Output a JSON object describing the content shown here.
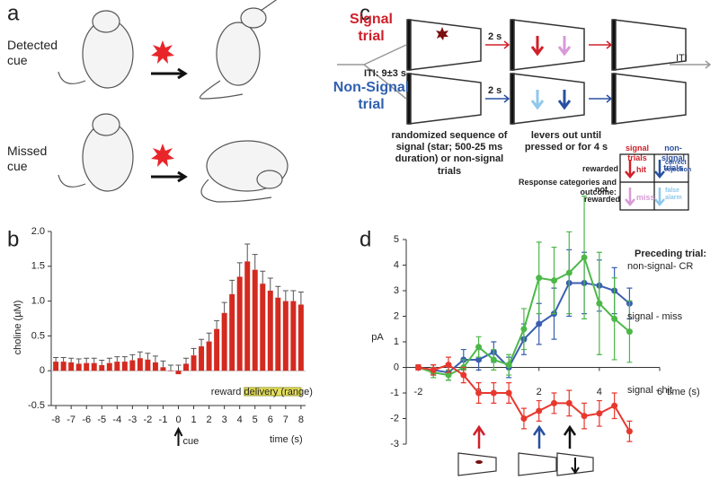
{
  "panels": {
    "a": {
      "label": "a",
      "detected": "Detected cue",
      "missed": "Missed cue"
    },
    "c": {
      "label": "c",
      "signal_trial": "Signal trial",
      "nonsignal_trial": "Non-Signal trial",
      "iti": "ITI: 9±3 s",
      "delay_signal": "2 s",
      "delay_nonsignal": "2 s",
      "iti_end": "ITI",
      "sequence_note": "randomized sequence of signal (star; 500-25 ms duration) or non-signal trials",
      "lever_note": "levers out until pressed or for 4 s",
      "table": {
        "caption": "Response categories and outcome:",
        "columns": [
          "signal trials",
          "non-signal trials"
        ],
        "rows": [
          "rewarded",
          "not rewarded"
        ],
        "cells": [
          [
            "hit",
            "correct rejection"
          ],
          [
            "miss",
            "false alarm"
          ]
        ]
      }
    }
  },
  "chart_data": [
    {
      "type": "bar",
      "label": "b",
      "y_label": "choline (µM)",
      "x_label": "time (s)",
      "color": "#d42a20",
      "x": [
        -8,
        -7.5,
        -7,
        -6.5,
        -6,
        -5.5,
        -5,
        -4.5,
        -4,
        -3.5,
        -3,
        -2.5,
        -2,
        -1.5,
        -1,
        -0.5,
        0,
        0.5,
        1,
        1.5,
        2,
        2.5,
        3,
        3.5,
        4,
        4.5,
        5,
        5.5,
        6,
        6.5,
        7,
        7.5,
        8
      ],
      "values": [
        0.13,
        0.13,
        0.12,
        0.1,
        0.11,
        0.11,
        0.08,
        0.11,
        0.13,
        0.13,
        0.15,
        0.18,
        0.16,
        0.12,
        0.05,
        0.0,
        -0.05,
        0.1,
        0.22,
        0.35,
        0.42,
        0.6,
        0.83,
        1.1,
        1.35,
        1.57,
        1.45,
        1.25,
        1.15,
        1.05,
        1.0,
        1.0,
        0.95
      ],
      "errors": [
        0.06,
        0.06,
        0.06,
        0.07,
        0.07,
        0.07,
        0.07,
        0.07,
        0.07,
        0.07,
        0.08,
        0.09,
        0.09,
        0.09,
        0.09,
        0.08,
        0.08,
        0.08,
        0.1,
        0.1,
        0.12,
        0.12,
        0.15,
        0.2,
        0.2,
        0.25,
        0.22,
        0.18,
        0.18,
        0.16,
        0.15,
        0.15,
        0.18
      ],
      "xlim": [
        -8.3,
        8.3
      ],
      "ylim": [
        -0.5,
        2.0
      ],
      "xticks": [
        -8,
        -7,
        -6,
        -5,
        -4,
        -3,
        -2,
        -1,
        0,
        1,
        2,
        3,
        4,
        5,
        6,
        7,
        8
      ],
      "yticks": [
        -0.5,
        0,
        0.5,
        {
          "value": 1,
          "label": "1.0"
        },
        1.5,
        {
          "value": 2,
          "label": "2.0"
        }
      ],
      "annotations": [
        {
          "text": "cue",
          "x": 0
        },
        {
          "text": "reward delivery (range)",
          "x": [
            4.3,
            8
          ]
        }
      ]
    },
    {
      "type": "line",
      "label": "d",
      "y_label": "pA",
      "x_label": "time (s)",
      "legend_title": "Preceding trial:",
      "x": [
        -2,
        -1.5,
        -1,
        -0.5,
        0,
        0.5,
        1,
        1.5,
        2,
        2.5,
        3,
        3.5,
        4,
        4.5,
        5
      ],
      "series": [
        {
          "name": "non-signal- CR",
          "color": "#3a5fb0",
          "values": [
            0,
            -0.1,
            -0.2,
            0.3,
            0.3,
            0.6,
            0,
            1.1,
            1.7,
            2.1,
            3.3,
            3.3,
            3.2,
            3.0,
            2.5
          ],
          "errors": [
            0.1,
            0.2,
            0.3,
            0.4,
            0.4,
            0.4,
            0.4,
            0.6,
            0.8,
            1.0,
            1.3,
            1.2,
            1.0,
            0.9,
            0.6
          ]
        },
        {
          "name": "signal - miss",
          "color": "#4cb848",
          "values": [
            0,
            -0.2,
            -0.3,
            0,
            0.8,
            0.3,
            0.1,
            1.5,
            3.5,
            3.4,
            3.7,
            4.3,
            2.5,
            1.9,
            1.4
          ],
          "errors": [
            0.1,
            0.2,
            0.2,
            0.3,
            0.4,
            0.4,
            0.4,
            0.8,
            1.4,
            1.3,
            1.6,
            2.4,
            2.0,
            1.6,
            1.2
          ]
        },
        {
          "name": "signal - hit",
          "color": "#e8382e",
          "values": [
            0,
            -0.1,
            0.1,
            -0.3,
            -1.0,
            -1.0,
            -1.0,
            -2.0,
            -1.7,
            -1.4,
            -1.4,
            -1.9,
            -1.8,
            -1.5,
            -2.5
          ],
          "errors": [
            0.1,
            0.2,
            0.3,
            0.3,
            0.4,
            0.4,
            0.4,
            0.4,
            0.4,
            0.4,
            0.5,
            0.5,
            0.5,
            0.5,
            0.4
          ]
        }
      ],
      "xlim": [
        -2.4,
        6
      ],
      "ylim": [
        -3,
        5
      ],
      "xticks": [
        -2,
        0,
        2,
        4,
        6
      ],
      "yticks": [
        -3,
        -2,
        -1,
        0,
        1,
        2,
        3,
        4,
        5
      ]
    }
  ]
}
